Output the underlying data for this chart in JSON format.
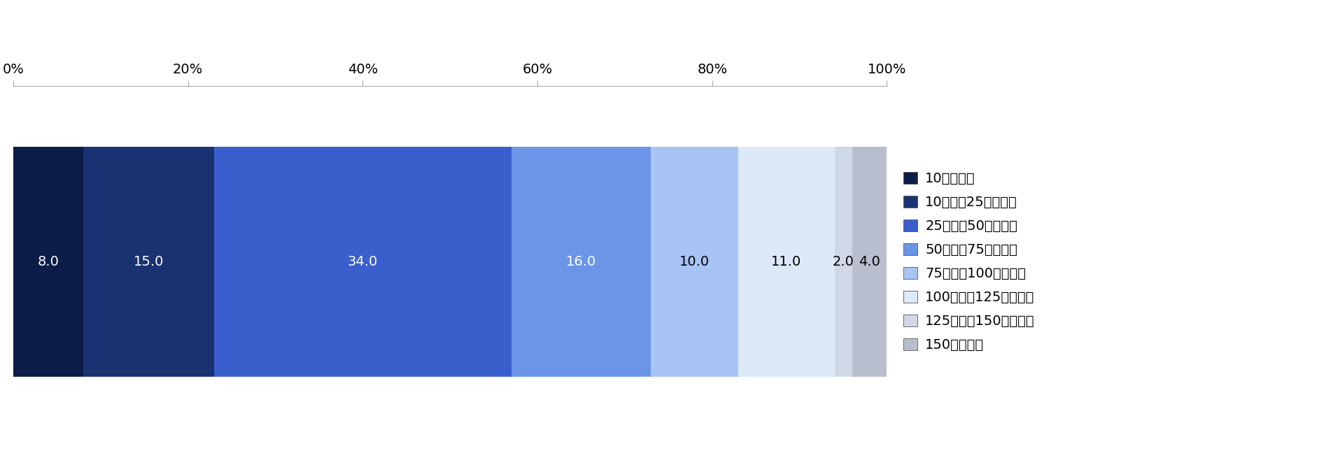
{
  "values": [
    8.0,
    15.0,
    34.0,
    16.0,
    10.0,
    11.0,
    2.0,
    4.0
  ],
  "colors": [
    "#0d1d4a",
    "#1a3272",
    "#3a5ecc",
    "#6b96e8",
    "#a8c4f5",
    "#dde8f8",
    "#d0d8e8",
    "#b8bece"
  ],
  "labels": [
    "10万円未満",
    "10万円～25万円未満",
    "25万円～50万円未満",
    "50万円～75万円未満",
    "75万円～100万円未満",
    "100万円～125万円未満",
    "125万円～150万円未満",
    "150万円以上"
  ],
  "label_colors": [
    "white",
    "white",
    "white",
    "white",
    "black",
    "black",
    "black",
    "black"
  ],
  "x_ticks": [
    0,
    20,
    40,
    60,
    80,
    100
  ],
  "x_tick_labels": [
    "0%",
    "20%",
    "40%",
    "60%",
    "80%",
    "100%"
  ],
  "bar_height": 0.72,
  "figsize": [
    19.06,
    6.81
  ],
  "dpi": 100,
  "background_color": "#ffffff",
  "legend_fontsize": 14,
  "label_fontsize": 14,
  "tick_fontsize": 14
}
